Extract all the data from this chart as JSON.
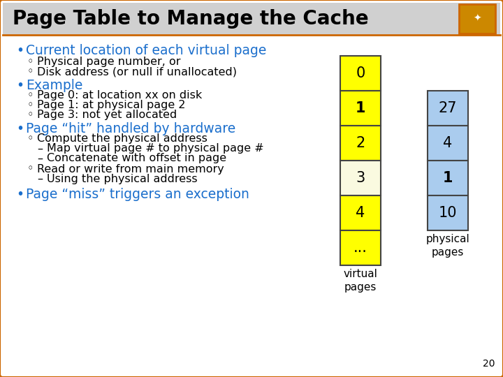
{
  "title": "Page Table to Manage the Cache",
  "title_color": "#000000",
  "slide_bg": "#ffffff",
  "border_color": "#cc6600",
  "header_bg": "#d0d0d0",
  "bullets": [
    {
      "level": 1,
      "text": "Current location of each virtual page",
      "color": "#1a6ecc"
    },
    {
      "level": 2,
      "text": "Physical page number, or",
      "color": "#000000"
    },
    {
      "level": 2,
      "text": "Disk address (or null if unallocated)",
      "color": "#000000"
    },
    {
      "level": 1,
      "text": "Example",
      "color": "#1a6ecc"
    },
    {
      "level": 2,
      "text": "Page 0: at location xx on disk",
      "color": "#000000"
    },
    {
      "level": 2,
      "text": "Page 1: at physical page 2",
      "color": "#000000"
    },
    {
      "level": 2,
      "text": "Page 3: not yet allocated",
      "color": "#000000"
    },
    {
      "level": 1,
      "text": "Page “hit” handled by hardware",
      "color": "#1a6ecc"
    },
    {
      "level": 2,
      "text": "Compute the physical address",
      "color": "#000000"
    },
    {
      "level": 3,
      "text": "Map virtual page # to physical page #",
      "color": "#000000"
    },
    {
      "level": 3,
      "text": "Concatenate with offset in page",
      "color": "#000000"
    },
    {
      "level": 2,
      "text": "Read or write from main memory",
      "color": "#000000"
    },
    {
      "level": 3,
      "text": "Using the physical address",
      "color": "#000000"
    },
    {
      "level": 1,
      "text": "Page “miss” triggers an exception",
      "color": "#1a6ecc"
    }
  ],
  "virtual_pages": [
    "0",
    "1",
    "2",
    "3",
    "4",
    "..."
  ],
  "virtual_page_colors": [
    "#ffff00",
    "#ffff00",
    "#ffff00",
    "#fafae0",
    "#ffff00",
    "#ffff00"
  ],
  "virtual_page_bold": [
    false,
    true,
    false,
    false,
    false,
    false
  ],
  "physical_pages": [
    "27",
    "4",
    "1",
    "10"
  ],
  "physical_page_colors": [
    "#aaccee",
    "#aaccee",
    "#aaccee",
    "#aaccee"
  ],
  "physical_page_bold": [
    false,
    false,
    true,
    false
  ],
  "vpage_label": "virtual\npages",
  "ppage_label": "physical\npages",
  "page_num": "20"
}
